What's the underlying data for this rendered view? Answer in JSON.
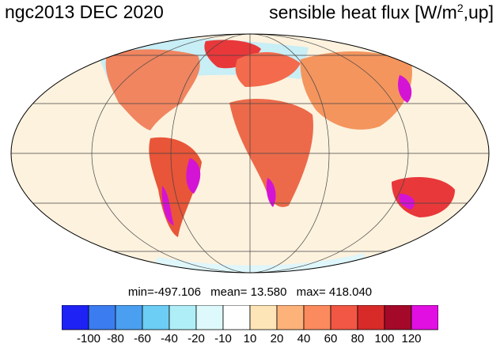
{
  "header": {
    "title_left": "ngc2013 DEC 2020",
    "title_right_main": "sensible heat flux [W/m",
    "title_right_sup": "2",
    "title_right_tail": ",up]"
  },
  "stats": {
    "min": "min=-497.106",
    "mean": "mean=  13.580",
    "max": "max= 418.040"
  },
  "colorbar": {
    "colors": [
      "#1e22f5",
      "#3b7cf0",
      "#4a9ff0",
      "#6ccdf5",
      "#b0eef7",
      "#def9fb",
      "#ffffff",
      "#fde5b8",
      "#fdb27a",
      "#fb8a5e",
      "#f15744",
      "#d92a2a",
      "#a5092a",
      "#e20fe2"
    ],
    "labels": [
      "-100",
      "-80",
      "-60",
      "-40",
      "-20",
      "-10",
      "10",
      "20",
      "40",
      "60",
      "80",
      "100",
      "120"
    ]
  }
}
